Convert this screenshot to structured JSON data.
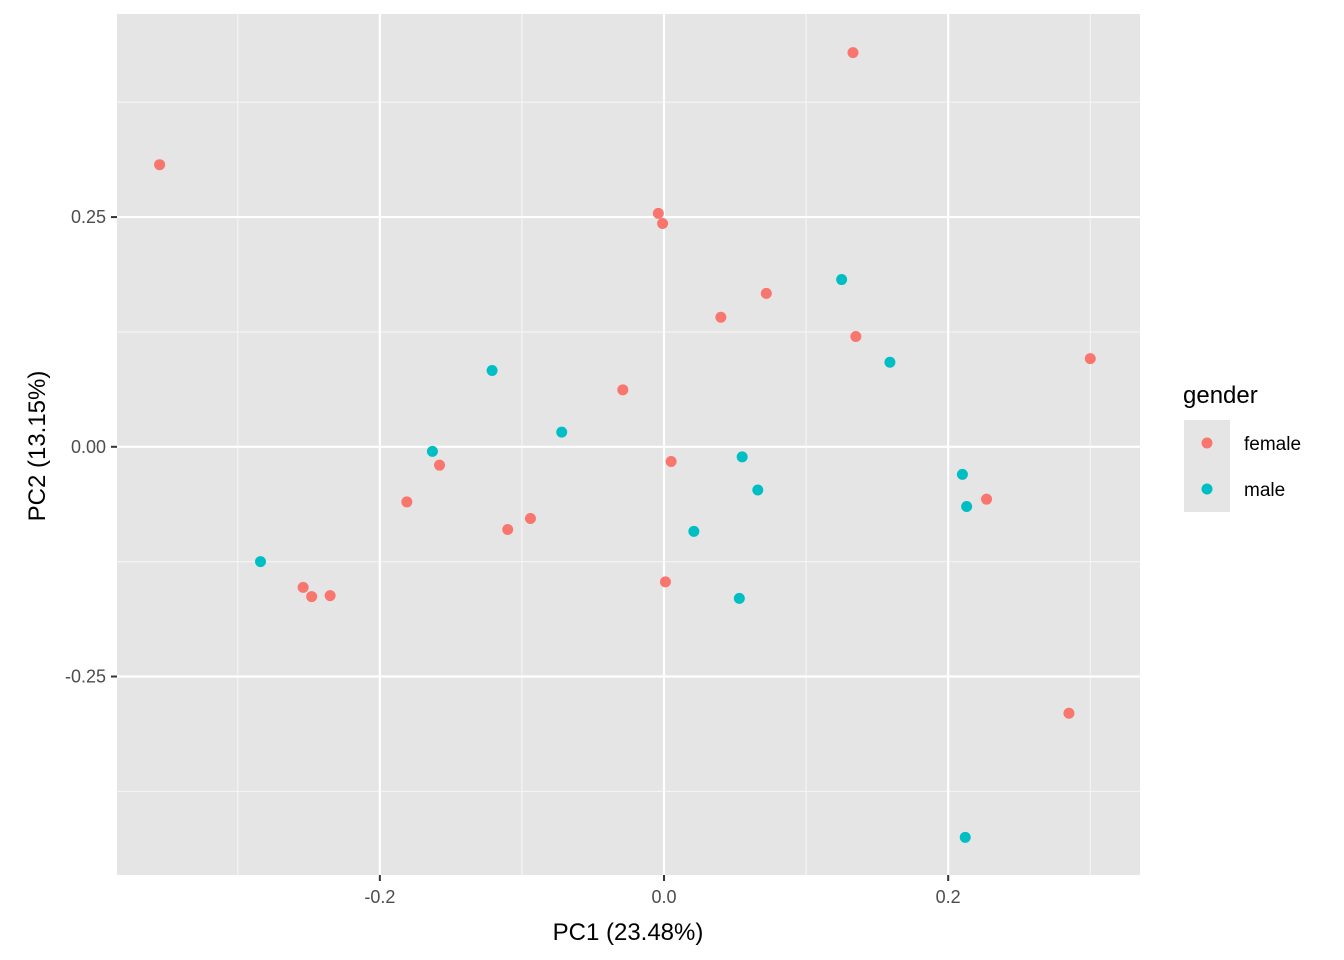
{
  "chart_data": {
    "type": "scatter",
    "xlabel": "PC1 (23.48%)",
    "ylabel": "PC2 (13.15%)",
    "xlim": [
      -0.385,
      0.335
    ],
    "ylim": [
      -0.466,
      0.471
    ],
    "x_ticks": [
      -0.2,
      0.0,
      0.2
    ],
    "x_tick_labels": [
      "-0.2",
      "0.0",
      "0.2"
    ],
    "y_ticks": [
      -0.25,
      0.0,
      0.25
    ],
    "y_tick_labels": [
      "-0.25",
      "0.00",
      "0.25"
    ],
    "grid": true,
    "legend": {
      "title": "gender",
      "position": "right"
    },
    "series": [
      {
        "name": "female",
        "color": "#F8766D",
        "points": [
          [
            -0.355,
            0.307
          ],
          [
            0.133,
            0.429
          ],
          [
            -0.004,
            0.254
          ],
          [
            -0.001,
            0.243
          ],
          [
            0.072,
            0.167
          ],
          [
            0.04,
            0.141
          ],
          [
            0.135,
            0.12
          ],
          [
            0.3,
            0.096
          ],
          [
            -0.029,
            0.062
          ],
          [
            0.005,
            -0.016
          ],
          [
            -0.158,
            -0.02
          ],
          [
            -0.181,
            -0.06
          ],
          [
            -0.11,
            -0.09
          ],
          [
            -0.094,
            -0.078
          ],
          [
            0.227,
            -0.057
          ],
          [
            0.001,
            -0.147
          ],
          [
            -0.254,
            -0.153
          ],
          [
            -0.248,
            -0.163
          ],
          [
            -0.235,
            -0.162
          ],
          [
            0.285,
            -0.29
          ]
        ]
      },
      {
        "name": "male",
        "color": "#00BFC4",
        "points": [
          [
            0.125,
            0.182
          ],
          [
            0.159,
            0.092
          ],
          [
            -0.121,
            0.083
          ],
          [
            -0.072,
            0.016
          ],
          [
            -0.163,
            -0.005
          ],
          [
            0.055,
            -0.011
          ],
          [
            0.066,
            -0.047
          ],
          [
            0.21,
            -0.03
          ],
          [
            0.213,
            -0.065
          ],
          [
            0.021,
            -0.092
          ],
          [
            -0.284,
            -0.125
          ],
          [
            0.053,
            -0.165
          ],
          [
            0.212,
            -0.425
          ]
        ]
      }
    ]
  }
}
